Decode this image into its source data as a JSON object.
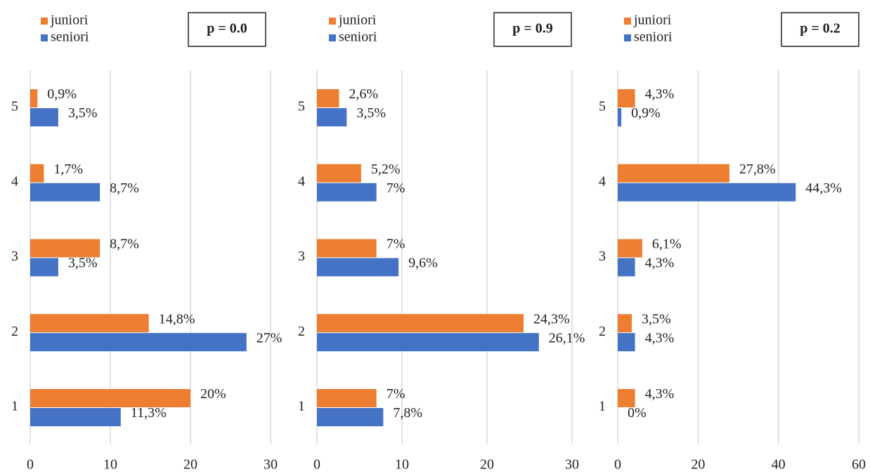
{
  "chart_data": [
    {
      "type": "bar",
      "orientation": "horizontal",
      "annotation": "p = 0.0",
      "categories": [
        "1",
        "2",
        "3",
        "4",
        "5"
      ],
      "series": [
        {
          "name": "juniori",
          "color": "#ed7d31",
          "values": [
            20,
            14.8,
            8.7,
            1.7,
            0.9
          ],
          "value_labels": [
            "20%",
            "14,8%",
            "8,7%",
            "1,7%",
            "0,9%"
          ]
        },
        {
          "name": "seniori",
          "color": "#4472c4",
          "values": [
            11.3,
            27,
            3.5,
            8.7,
            3.5
          ],
          "value_labels": [
            "11,3%",
            "27%",
            "3,5%",
            "8,7%",
            "3,5%"
          ]
        }
      ],
      "xlim": [
        0,
        30
      ],
      "xticks": [
        0,
        10,
        20,
        30
      ],
      "grid": true
    },
    {
      "type": "bar",
      "orientation": "horizontal",
      "annotation": "p = 0.9",
      "categories": [
        "1",
        "2",
        "3",
        "4",
        "5"
      ],
      "series": [
        {
          "name": "juniori",
          "color": "#ed7d31",
          "values": [
            7,
            24.3,
            7,
            5.2,
            2.6
          ],
          "value_labels": [
            "7%",
            "24,3%",
            "7%",
            "5,2%",
            "2,6%"
          ]
        },
        {
          "name": "seniori",
          "color": "#4472c4",
          "values": [
            7.8,
            26.1,
            9.6,
            7,
            3.5
          ],
          "value_labels": [
            "7,8%",
            "26,1%",
            "9,6%",
            "7%",
            "3,5%"
          ]
        }
      ],
      "xlim": [
        0,
        30
      ],
      "xticks": [
        0,
        10,
        20,
        30
      ],
      "grid": true
    },
    {
      "type": "bar",
      "orientation": "horizontal",
      "annotation": "p = 0.2",
      "categories": [
        "1",
        "2",
        "3",
        "4",
        "5"
      ],
      "series": [
        {
          "name": "juniori",
          "color": "#ed7d31",
          "values": [
            4.3,
            3.5,
            6.1,
            27.8,
            4.3
          ],
          "value_labels": [
            "4,3%",
            "3,5%",
            "6,1%",
            "27,8%",
            "4,3%"
          ]
        },
        {
          "name": "seniori",
          "color": "#4472c4",
          "values": [
            0,
            4.3,
            4.3,
            44.3,
            0.9
          ],
          "value_labels": [
            "0%",
            "4,3%",
            "4,3%",
            "44,3%",
            "0,9%"
          ]
        }
      ],
      "xlim": [
        0,
        60
      ],
      "xticks": [
        0,
        20,
        40,
        60
      ],
      "grid": true
    }
  ]
}
